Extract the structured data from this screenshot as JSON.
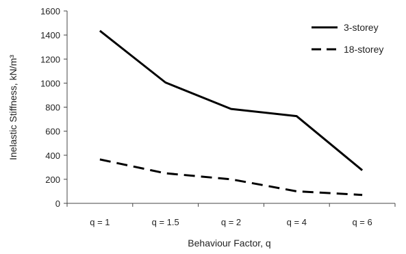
{
  "chart_data": {
    "type": "line",
    "xlabel": "Behaviour Factor, q",
    "ylabel": "Inelastic Stiffness, kN/m³",
    "categories": [
      "q = 1",
      "q = 1.5",
      "q = 2",
      "q = 4",
      "q = 6"
    ],
    "ylim": [
      0,
      1600
    ],
    "yticks": [
      0,
      200,
      400,
      600,
      800,
      1000,
      1200,
      1400,
      1600
    ],
    "grid": false,
    "legend_position": "top-right",
    "series": [
      {
        "name": "3-storey",
        "values": [
          1435,
          1005,
          785,
          725,
          275
        ],
        "style": "solid",
        "color": "#000000"
      },
      {
        "name": "18-storey",
        "values": [
          365,
          250,
          200,
          100,
          70
        ],
        "style": "dashed",
        "color": "#000000"
      }
    ]
  }
}
